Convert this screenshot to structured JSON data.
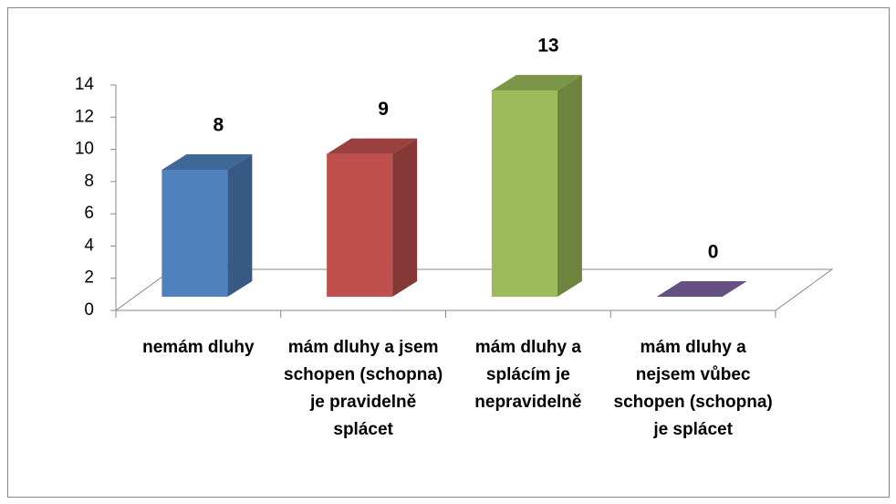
{
  "chart_data": {
    "type": "bar3d",
    "categories": [
      "nemám dluhy",
      "mám dluhy a jsem schopen (schopna) je pravidelně splácet",
      "mám dluhy a splácím je nepravidelně",
      "mám dluhy a nejsem vůbec schopen (schopna) je splácet"
    ],
    "values": [
      8,
      9,
      13,
      0
    ],
    "colors": [
      "#4f81bd",
      "#c0504d",
      "#9bbb59",
      "#8064a2"
    ],
    "ylim": [
      0,
      14
    ],
    "yticks": [
      0,
      2,
      4,
      6,
      8,
      10,
      12,
      14
    ]
  }
}
